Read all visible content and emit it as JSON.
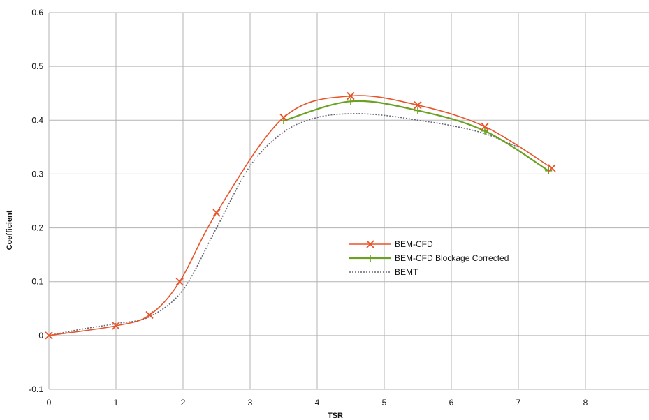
{
  "chart_data": {
    "type": "line",
    "title": "",
    "xlabel": "TSR",
    "ylabel": "Coefficient",
    "xlim": [
      0,
      9
    ],
    "ylim": [
      -0.1,
      0.6
    ],
    "x_ticks": [
      0,
      1,
      2,
      3,
      4,
      5,
      6,
      7,
      8
    ],
    "y_ticks": [
      -0.1,
      0,
      0.1,
      0.2,
      0.3,
      0.4,
      0.5,
      0.6
    ],
    "x_tick_labels": [
      "0",
      "1",
      "2",
      "3",
      "4",
      "5",
      "6",
      "7",
      "8"
    ],
    "y_tick_labels": [
      "-0.1",
      "0",
      "0.1",
      "0.2",
      "0.3",
      "0.4",
      "0.5",
      "0.6"
    ],
    "grid": true,
    "legend_position": "center-right",
    "series": [
      {
        "name": "BEM-CFD",
        "color": "#e8542a",
        "marker": "x",
        "line_style": "solid",
        "x": [
          0,
          1,
          1.5,
          1.95,
          2.5,
          3.5,
          4.5,
          5.5,
          6.5,
          7.5
        ],
        "y": [
          0.0,
          0.018,
          0.038,
          0.1,
          0.228,
          0.405,
          0.445,
          0.428,
          0.388,
          0.311
        ]
      },
      {
        "name": "BEM-CFD Blockage Corrected",
        "color": "#6aa121",
        "marker": "+",
        "line_style": "solid",
        "x": [
          3.5,
          4.5,
          5.5,
          6.5,
          7.45
        ],
        "y": [
          0.399,
          0.435,
          0.418,
          0.38,
          0.306
        ]
      },
      {
        "name": "BEMT",
        "color": "#666677",
        "marker": "none",
        "line_style": "dotted",
        "x": [
          0,
          0.5,
          1,
          1.5,
          2,
          2.5,
          3,
          3.5,
          4,
          4.5,
          5,
          5.5,
          6,
          6.5,
          7
        ],
        "y": [
          0.0,
          0.012,
          0.022,
          0.035,
          0.085,
          0.2,
          0.315,
          0.378,
          0.405,
          0.412,
          0.409,
          0.4,
          0.39,
          0.375,
          0.35
        ]
      }
    ]
  }
}
